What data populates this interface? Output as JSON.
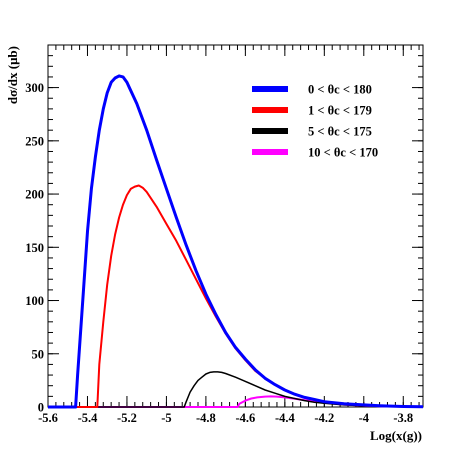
{
  "chart_data": {
    "type": "line",
    "title": "",
    "xlabel": "Log(x(g))",
    "ylabel": "dσ/dx (μb)",
    "xlim": [
      -5.6,
      -3.7
    ],
    "ylim": [
      0,
      340
    ],
    "x_ticks": [
      -5.6,
      -5.4,
      -5.2,
      -5.0,
      -4.8,
      -4.6,
      -4.4,
      -4.2,
      -4.0,
      -3.8
    ],
    "x_tick_labels": [
      "-5.6",
      "-5.4",
      "-5.2",
      "-5",
      "-4.8",
      "-4.6",
      "-4.4",
      "-4.2",
      "-4",
      "-3.8"
    ],
    "y_ticks": [
      0,
      50,
      100,
      150,
      200,
      250,
      300
    ],
    "y_tick_labels": [
      "0",
      "50",
      "100",
      "150",
      "200",
      "250",
      "300"
    ],
    "grid": false,
    "legend_position": "top-right",
    "series": [
      {
        "name": "0 < θc < 180",
        "color": "#0000ff",
        "points": [
          [
            -5.6,
            0
          ],
          [
            -5.46,
            0
          ],
          [
            -5.45,
            30
          ],
          [
            -5.42,
            110
          ],
          [
            -5.4,
            165
          ],
          [
            -5.38,
            205
          ],
          [
            -5.36,
            235
          ],
          [
            -5.34,
            260
          ],
          [
            -5.32,
            280
          ],
          [
            -5.3,
            295
          ],
          [
            -5.28,
            305
          ],
          [
            -5.26,
            309
          ],
          [
            -5.24,
            311
          ],
          [
            -5.22,
            310
          ],
          [
            -5.2,
            305
          ],
          [
            -5.15,
            285
          ],
          [
            -5.1,
            260
          ],
          [
            -5.05,
            232
          ],
          [
            -5.0,
            205
          ],
          [
            -4.95,
            178
          ],
          [
            -4.9,
            152
          ],
          [
            -4.85,
            128
          ],
          [
            -4.8,
            106
          ],
          [
            -4.75,
            87
          ],
          [
            -4.7,
            70
          ],
          [
            -4.65,
            56
          ],
          [
            -4.6,
            45
          ],
          [
            -4.55,
            35
          ],
          [
            -4.5,
            27
          ],
          [
            -4.45,
            21
          ],
          [
            -4.4,
            16
          ],
          [
            -4.35,
            12
          ],
          [
            -4.3,
            9
          ],
          [
            -4.25,
            7
          ],
          [
            -4.2,
            5
          ],
          [
            -4.1,
            3
          ],
          [
            -4.0,
            2
          ],
          [
            -3.9,
            1
          ],
          [
            -3.8,
            0.5
          ],
          [
            -3.7,
            0.3
          ]
        ]
      },
      {
        "name": "1 < θc < 179",
        "color": "#ff0000",
        "points": [
          [
            -5.6,
            0
          ],
          [
            -5.35,
            0
          ],
          [
            -5.34,
            40
          ],
          [
            -5.32,
            80
          ],
          [
            -5.3,
            115
          ],
          [
            -5.28,
            142
          ],
          [
            -5.26,
            162
          ],
          [
            -5.24,
            178
          ],
          [
            -5.22,
            190
          ],
          [
            -5.2,
            199
          ],
          [
            -5.18,
            205
          ],
          [
            -5.16,
            207
          ],
          [
            -5.14,
            208
          ],
          [
            -5.12,
            206
          ],
          [
            -5.1,
            202
          ],
          [
            -5.05,
            188
          ],
          [
            -5.0,
            172
          ],
          [
            -4.95,
            156
          ],
          [
            -4.9,
            138
          ],
          [
            -4.85,
            120
          ],
          [
            -4.8,
            102
          ],
          [
            -4.75,
            85
          ],
          [
            -4.7,
            69
          ],
          [
            -4.65,
            55
          ],
          [
            -4.6,
            44
          ],
          [
            -4.55,
            34
          ],
          [
            -4.5,
            27
          ],
          [
            -4.45,
            21
          ],
          [
            -4.4,
            16
          ],
          [
            -4.35,
            12
          ],
          [
            -4.3,
            9
          ],
          [
            -4.25,
            7
          ],
          [
            -4.2,
            5
          ],
          [
            -4.1,
            3
          ],
          [
            -4.0,
            2
          ],
          [
            -3.9,
            1
          ],
          [
            -3.8,
            0.5
          ],
          [
            -3.7,
            0.3
          ]
        ]
      },
      {
        "name": "5 < θc < 175",
        "color": "#000000",
        "points": [
          [
            -5.6,
            0
          ],
          [
            -4.91,
            0
          ],
          [
            -4.9,
            5
          ],
          [
            -4.88,
            14
          ],
          [
            -4.86,
            20
          ],
          [
            -4.84,
            25
          ],
          [
            -4.82,
            28
          ],
          [
            -4.8,
            31
          ],
          [
            -4.78,
            32.5
          ],
          [
            -4.76,
            33
          ],
          [
            -4.74,
            33
          ],
          [
            -4.72,
            32.5
          ],
          [
            -4.7,
            31.5
          ],
          [
            -4.65,
            28
          ],
          [
            -4.6,
            24
          ],
          [
            -4.55,
            20
          ],
          [
            -4.5,
            16
          ],
          [
            -4.45,
            13
          ],
          [
            -4.4,
            10
          ],
          [
            -4.35,
            8
          ],
          [
            -4.3,
            6
          ],
          [
            -4.25,
            4.5
          ],
          [
            -4.2,
            3.5
          ],
          [
            -4.1,
            2
          ],
          [
            -4.0,
            1.2
          ],
          [
            -3.9,
            0.7
          ],
          [
            -3.8,
            0.4
          ],
          [
            -3.7,
            0.2
          ]
        ]
      },
      {
        "name": "10 < θc < 170",
        "color": "#ff00ff",
        "points": [
          [
            -5.6,
            0
          ],
          [
            -4.64,
            0
          ],
          [
            -4.63,
            3
          ],
          [
            -4.6,
            6
          ],
          [
            -4.57,
            8
          ],
          [
            -4.54,
            9
          ],
          [
            -4.5,
            9.8
          ],
          [
            -4.47,
            10
          ],
          [
            -4.44,
            9.8
          ],
          [
            -4.4,
            9
          ],
          [
            -4.35,
            7.8
          ],
          [
            -4.3,
            6.5
          ],
          [
            -4.25,
            5.2
          ],
          [
            -4.2,
            4
          ],
          [
            -4.1,
            2.3
          ],
          [
            -4.0,
            1.3
          ],
          [
            -3.9,
            0.7
          ],
          [
            -3.8,
            0.4
          ],
          [
            -3.7,
            0.2
          ]
        ]
      }
    ]
  }
}
